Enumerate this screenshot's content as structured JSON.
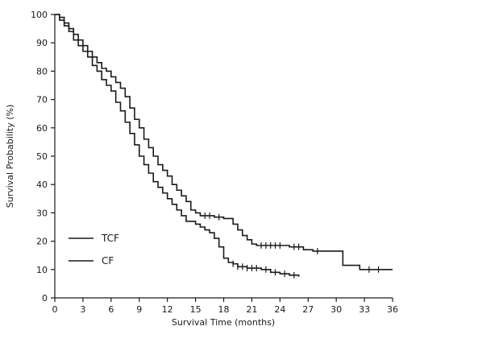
{
  "figure": {
    "background": "#ffffff"
  },
  "chart_data": {
    "type": "line",
    "style": "kaplan-meier-step",
    "title": "",
    "xlabel": "Survival Time (months)",
    "ylabel": "Survival Probability (%)",
    "xlim": [
      0,
      36
    ],
    "ylim": [
      0,
      100
    ],
    "xticks": [
      0,
      3,
      6,
      9,
      12,
      15,
      18,
      21,
      24,
      27,
      30,
      33,
      36
    ],
    "yticks": [
      0,
      10,
      20,
      30,
      40,
      50,
      60,
      70,
      80,
      90,
      100
    ],
    "grid": false,
    "line_color": "#1a1a1a",
    "legend": {
      "position": "inside-lower-left",
      "entries": [
        "TCF",
        "CF"
      ]
    },
    "series": [
      {
        "name": "TCF",
        "points": [
          [
            0,
            100
          ],
          [
            0.5,
            99
          ],
          [
            1,
            97
          ],
          [
            1.5,
            95
          ],
          [
            2,
            93
          ],
          [
            2.5,
            91
          ],
          [
            3,
            89
          ],
          [
            3.5,
            87
          ],
          [
            4,
            85
          ],
          [
            4.5,
            83
          ],
          [
            5,
            81
          ],
          [
            5.5,
            80
          ],
          [
            6,
            78
          ],
          [
            6.5,
            76
          ],
          [
            7,
            74
          ],
          [
            7.5,
            71
          ],
          [
            8,
            67
          ],
          [
            8.5,
            63
          ],
          [
            9,
            60
          ],
          [
            9.5,
            56
          ],
          [
            10,
            53
          ],
          [
            10.5,
            50
          ],
          [
            11,
            47
          ],
          [
            11.5,
            45
          ],
          [
            12,
            43
          ],
          [
            12.5,
            40
          ],
          [
            13,
            38
          ],
          [
            13.5,
            36
          ],
          [
            14,
            34
          ],
          [
            14.5,
            31
          ],
          [
            15,
            30
          ],
          [
            15.5,
            29
          ],
          [
            17,
            28.5
          ],
          [
            18,
            28
          ],
          [
            19,
            26
          ],
          [
            19.5,
            24
          ],
          [
            20,
            22
          ],
          [
            20.5,
            20.5
          ],
          [
            21,
            19
          ],
          [
            21.5,
            18.5
          ],
          [
            25,
            18
          ],
          [
            26.5,
            17
          ],
          [
            27.5,
            16.5
          ],
          [
            30.7,
            11.5
          ],
          [
            32.5,
            10
          ],
          [
            36,
            10
          ]
        ],
        "censor_x": [
          16,
          16.5,
          17.5,
          22,
          22.5,
          23,
          23.5,
          24,
          25.5,
          26,
          28,
          33.5,
          34.5
        ]
      },
      {
        "name": "CF",
        "points": [
          [
            0,
            100
          ],
          [
            0.5,
            98
          ],
          [
            1,
            96
          ],
          [
            1.5,
            94
          ],
          [
            2,
            91
          ],
          [
            2.5,
            89
          ],
          [
            3,
            87
          ],
          [
            3.5,
            85
          ],
          [
            4,
            82
          ],
          [
            4.5,
            80
          ],
          [
            5,
            77
          ],
          [
            5.5,
            75
          ],
          [
            6,
            73
          ],
          [
            6.5,
            69
          ],
          [
            7,
            66
          ],
          [
            7.5,
            62
          ],
          [
            8,
            58
          ],
          [
            8.5,
            54
          ],
          [
            9,
            50
          ],
          [
            9.5,
            47
          ],
          [
            10,
            44
          ],
          [
            10.5,
            41
          ],
          [
            11,
            39
          ],
          [
            11.5,
            37
          ],
          [
            12,
            35
          ],
          [
            12.5,
            33
          ],
          [
            13,
            31
          ],
          [
            13.5,
            29
          ],
          [
            14,
            27
          ],
          [
            15,
            26
          ],
          [
            15.5,
            25
          ],
          [
            16,
            24
          ],
          [
            16.5,
            23
          ],
          [
            17,
            21
          ],
          [
            17.5,
            18
          ],
          [
            18,
            14
          ],
          [
            18.5,
            12.5
          ],
          [
            19,
            12
          ],
          [
            19.5,
            11
          ],
          [
            20.5,
            10.5
          ],
          [
            22,
            10
          ],
          [
            23,
            9
          ],
          [
            24,
            8.5
          ],
          [
            25,
            8
          ],
          [
            26,
            7.5
          ]
        ],
        "censor_x": [
          19,
          19.5,
          20,
          20.5,
          21,
          21.5,
          22.5,
          23.5,
          24.5,
          25.5
        ]
      }
    ]
  }
}
